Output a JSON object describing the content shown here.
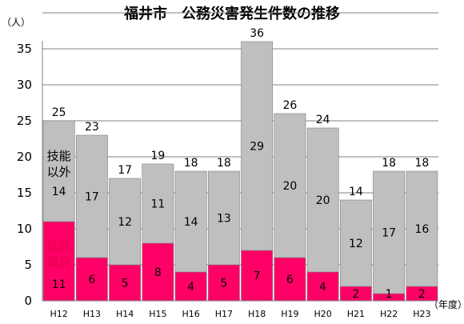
{
  "chart_data": {
    "type": "bar",
    "stacked": true,
    "title": "福井市　公務災害発生件数の推移",
    "y_unit": "（人）",
    "x_unit": "（年度）",
    "categories": [
      "H12",
      "H13",
      "H14",
      "H15",
      "H16",
      "H17",
      "H18",
      "H19",
      "H20",
      "H21",
      "H22",
      "H23"
    ],
    "series": [
      {
        "name": "技能職員",
        "color": "#ff0066",
        "values": [
          11,
          6,
          5,
          8,
          4,
          5,
          7,
          6,
          4,
          2,
          1,
          2
        ]
      },
      {
        "name": "技能以外",
        "color": "#bfbfbf",
        "values": [
          14,
          17,
          12,
          11,
          14,
          13,
          29,
          20,
          20,
          12,
          17,
          16
        ]
      }
    ],
    "totals": [
      25,
      23,
      17,
      19,
      18,
      18,
      36,
      26,
      24,
      14,
      18,
      18
    ],
    "ylim": [
      0,
      40
    ],
    "yticks": [
      0,
      5,
      10,
      15,
      20,
      25,
      30,
      35,
      40
    ],
    "grid": true,
    "annotations": {
      "gray_label": [
        "技能",
        "以外"
      ],
      "pink_label": [
        "技能",
        "職員"
      ]
    }
  }
}
